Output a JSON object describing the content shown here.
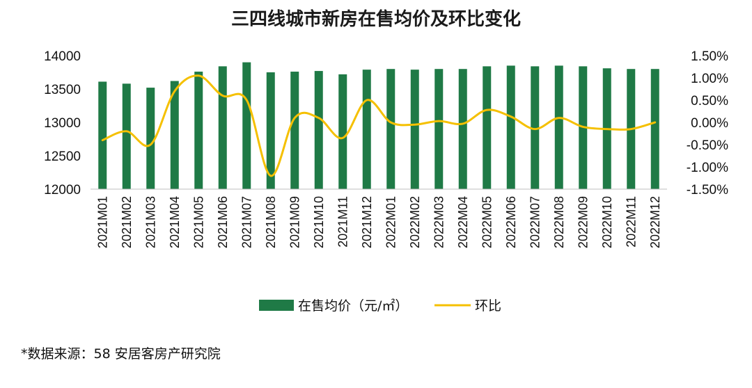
{
  "colors": {
    "bar": "#1f7a46",
    "line": "#f5c000"
  },
  "source_note": "*数据来源：58 安居客房产研究院",
  "chart_data": {
    "type": "bar",
    "title": "三四线城市新房在售均价及环比变化",
    "categories": [
      "2021M01",
      "2021M02",
      "2021M03",
      "2021M04",
      "2021M05",
      "2021M06",
      "2021M07",
      "2021M08",
      "2021M09",
      "2021M10",
      "2021M11",
      "2021M12",
      "2022M01",
      "2022M02",
      "2022M03",
      "2022M04",
      "2022M05",
      "2022M06",
      "2022M07",
      "2022M08",
      "2022M09",
      "2022M10",
      "2022M11",
      "2022M12"
    ],
    "series": [
      {
        "name": "在售均价（元/㎡）",
        "type": "bar",
        "axis": "left",
        "values": [
          13610,
          13580,
          13520,
          13620,
          13760,
          13840,
          13900,
          13750,
          13760,
          13770,
          13720,
          13790,
          13800,
          13790,
          13800,
          13800,
          13840,
          13850,
          13840,
          13850,
          13840,
          13810,
          13800,
          13800
        ]
      },
      {
        "name": "环比",
        "type": "line",
        "axis": "right",
        "values": [
          -0.4,
          -0.2,
          -0.5,
          0.7,
          1.05,
          0.6,
          0.5,
          -1.2,
          0.1,
          0.1,
          -0.35,
          0.5,
          0.0,
          -0.05,
          0.03,
          -0.03,
          0.28,
          0.13,
          -0.15,
          0.1,
          -0.1,
          -0.15,
          -0.15,
          0.0
        ]
      }
    ],
    "y_left": {
      "min": 12000,
      "max": 14000,
      "ticks": [
        "12000",
        "12500",
        "13000",
        "13500",
        "14000"
      ]
    },
    "y_right": {
      "min": -1.5,
      "max": 1.5,
      "ticks": [
        "-1.50%",
        "-1.00%",
        "-0.50%",
        "0.00%",
        "0.50%",
        "1.00%",
        "1.50%"
      ]
    },
    "legend_position": "bottom",
    "grid": false
  }
}
